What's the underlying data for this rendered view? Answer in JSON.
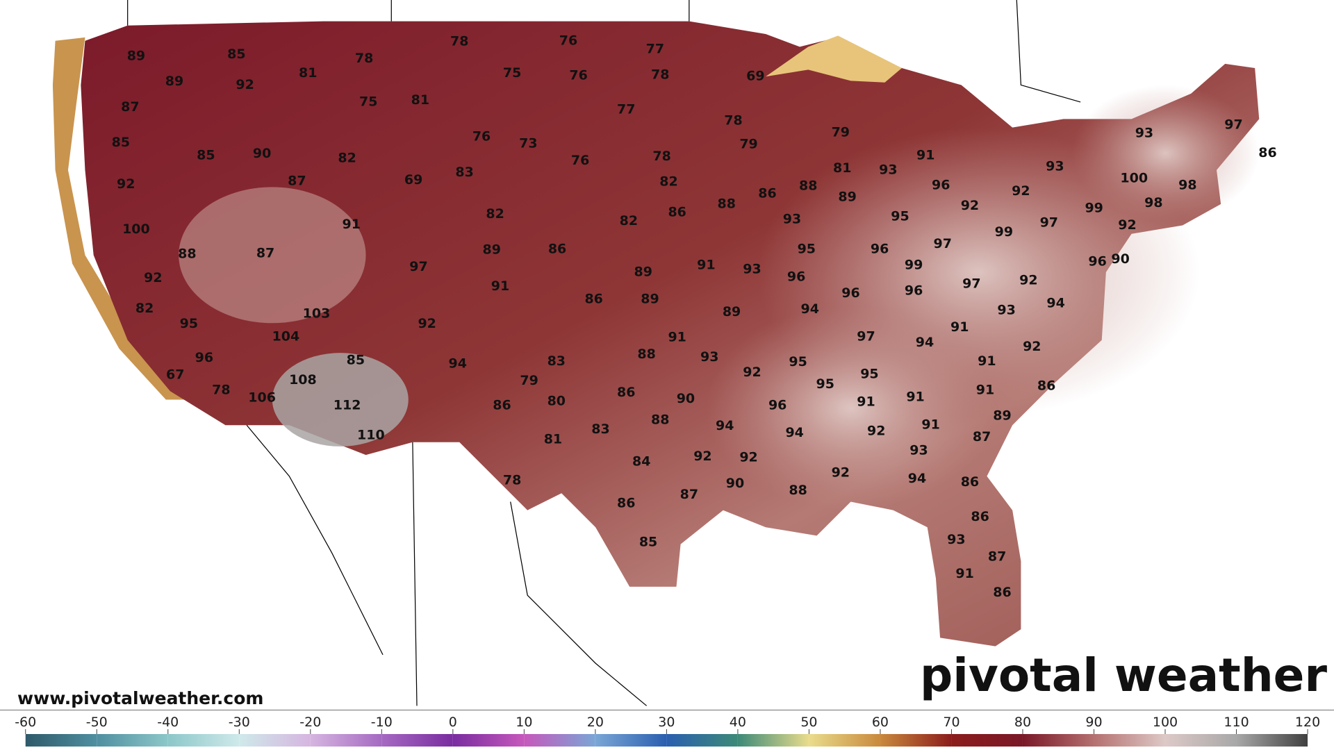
{
  "map": {
    "temperatures": [
      89,
      85,
      89,
      92,
      81,
      78,
      78,
      76,
      77,
      75,
      76,
      78,
      69,
      87,
      75,
      81,
      77,
      85,
      85,
      90,
      76,
      73,
      78,
      79,
      79,
      82,
      76,
      78,
      87,
      69,
      83,
      82,
      81,
      93,
      91,
      96,
      92,
      93,
      97,
      86,
      93,
      100,
      98,
      98,
      92,
      92,
      88,
      86,
      88,
      89,
      82,
      86,
      82,
      100,
      91,
      93,
      95,
      97,
      99,
      97,
      99,
      92,
      88,
      87,
      89,
      86,
      95,
      96,
      96,
      90,
      92,
      97,
      91,
      89,
      91,
      93,
      96,
      99,
      97,
      92,
      86,
      89,
      82,
      103,
      89,
      94,
      96,
      96,
      93,
      94,
      95,
      92,
      91,
      104,
      91,
      97,
      94,
      92,
      96,
      85,
      94,
      83,
      88,
      93,
      92,
      95,
      91,
      67,
      108,
      79,
      95,
      95,
      78,
      86,
      90,
      91,
      91,
      91,
      106,
      80,
      96,
      86,
      112,
      86,
      89,
      83,
      88,
      94,
      91,
      110,
      81,
      94,
      92,
      87,
      93,
      84,
      92,
      92,
      92,
      94,
      86,
      78,
      87,
      90,
      88,
      86,
      86,
      85,
      93,
      87,
      91,
      86
    ]
  },
  "watermark": "www.pivotalweather.com",
  "logo": "pivotal weather",
  "colorbar": {
    "ticks": [
      -60,
      -50,
      -40,
      -30,
      -20,
      -10,
      0,
      10,
      20,
      30,
      40,
      50,
      60,
      70,
      80,
      90,
      100,
      110,
      120
    ],
    "colors": [
      "#2e5a6a",
      "#4f8fa0",
      "#8cc7c9",
      "#cfe9ea",
      "#d6b5e0",
      "#a569c2",
      "#7a2ca0",
      "#c658bc",
      "#7aa6d6",
      "#2a5fb0",
      "#3d8a78",
      "#e9dc8c",
      "#c9893c",
      "#8c1c1c",
      "#7a1828",
      "#b57070",
      "#ddc9c7",
      "#a8a8a8",
      "#404040"
    ]
  }
}
